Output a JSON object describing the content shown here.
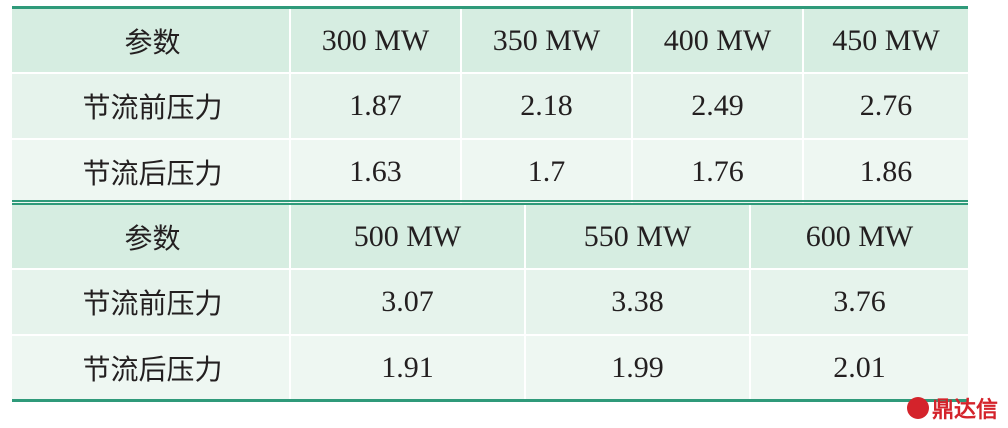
{
  "tables": [
    {
      "header": [
        "参数",
        "300 MW",
        "350 MW",
        "400 MW",
        "450 MW"
      ],
      "rows": [
        [
          "节流前压力",
          "1.87",
          "2.18",
          "2.49",
          "2.76"
        ],
        [
          "节流后压力",
          "1.63",
          "1.7",
          "1.76",
          "1.86"
        ]
      ]
    },
    {
      "header": [
        "参数",
        "500 MW",
        "550 MW",
        "600 MW"
      ],
      "rows": [
        [
          "节流前压力",
          "3.07",
          "3.38",
          "3.76"
        ],
        [
          "节流后压力",
          "1.91",
          "1.99",
          "2.01"
        ]
      ]
    }
  ],
  "watermark": "鼎达信"
}
